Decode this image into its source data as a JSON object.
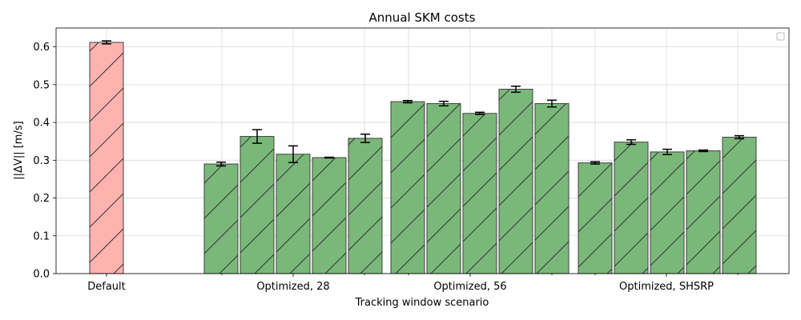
{
  "chart_data": {
    "type": "bar",
    "title": "Annual SKM costs",
    "xlabel": "Tracking window scenario",
    "ylabel": "||ΔV|| [m/s]",
    "ylim": [
      0,
      0.65
    ],
    "yticks": [
      0.0,
      0.1,
      0.2,
      0.3,
      0.4,
      0.5,
      0.6
    ],
    "grid": true,
    "legend": "upper right (empty)",
    "groups": [
      {
        "label": "Default",
        "color": "#ffb3b0",
        "bars": [
          {
            "value": 0.612,
            "error": 0.004
          }
        ]
      },
      {
        "label": "Optimized, 28",
        "color": "#7ab87a",
        "bars": [
          {
            "value": 0.29,
            "error": 0.005
          },
          {
            "value": 0.363,
            "error": 0.018
          },
          {
            "value": 0.316,
            "error": 0.022
          },
          {
            "value": 0.307,
            "error": 0.001
          },
          {
            "value": 0.358,
            "error": 0.011
          }
        ]
      },
      {
        "label": "Optimized, 56",
        "color": "#7ab87a",
        "bars": [
          {
            "value": 0.455,
            "error": 0.003
          },
          {
            "value": 0.45,
            "error": 0.006
          },
          {
            "value": 0.424,
            "error": 0.003
          },
          {
            "value": 0.488,
            "error": 0.008
          },
          {
            "value": 0.45,
            "error": 0.009
          }
        ]
      },
      {
        "label": "Optimized, SHSRP",
        "color": "#7ab87a",
        "bars": [
          {
            "value": 0.293,
            "error": 0.003
          },
          {
            "value": 0.348,
            "error": 0.006
          },
          {
            "value": 0.322,
            "error": 0.007
          },
          {
            "value": 0.325,
            "error": 0.002
          },
          {
            "value": 0.361,
            "error": 0.004
          }
        ]
      }
    ]
  },
  "colors": {
    "edge": "#404040",
    "grid": "#d9d9d9",
    "hatch": "#333333"
  }
}
